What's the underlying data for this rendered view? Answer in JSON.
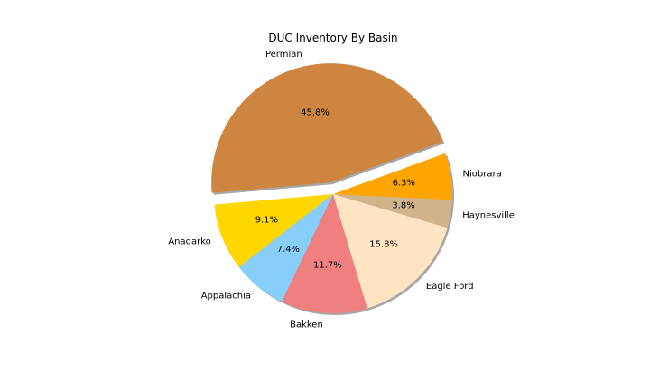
{
  "chart_data": {
    "type": "pie",
    "title": "DUC Inventory By Basin",
    "shadow": true,
    "slices": [
      {
        "label": "Permian",
        "value": 45.8,
        "pct_label": "45.8%",
        "color": "#cd853f",
        "explode": true
      },
      {
        "label": "Anadarko",
        "value": 9.1,
        "pct_label": "9.1%",
        "color": "#ffd700",
        "explode": false
      },
      {
        "label": "Appalachia",
        "value": 7.4,
        "pct_label": "7.4%",
        "color": "#87cefa",
        "explode": false
      },
      {
        "label": "Bakken",
        "value": 11.7,
        "pct_label": "11.7%",
        "color": "#f08080",
        "explode": false
      },
      {
        "label": "Eagle Ford",
        "value": 15.8,
        "pct_label": "15.8%",
        "color": "#ffe4c4",
        "explode": false
      },
      {
        "label": "Haynesville",
        "value": 3.8,
        "pct_label": "3.8%",
        "color": "#d2b48c",
        "explode": false
      },
      {
        "label": "Niobrara",
        "value": 6.3,
        "pct_label": "6.3%",
        "color": "#ffa500",
        "explode": false
      }
    ]
  }
}
